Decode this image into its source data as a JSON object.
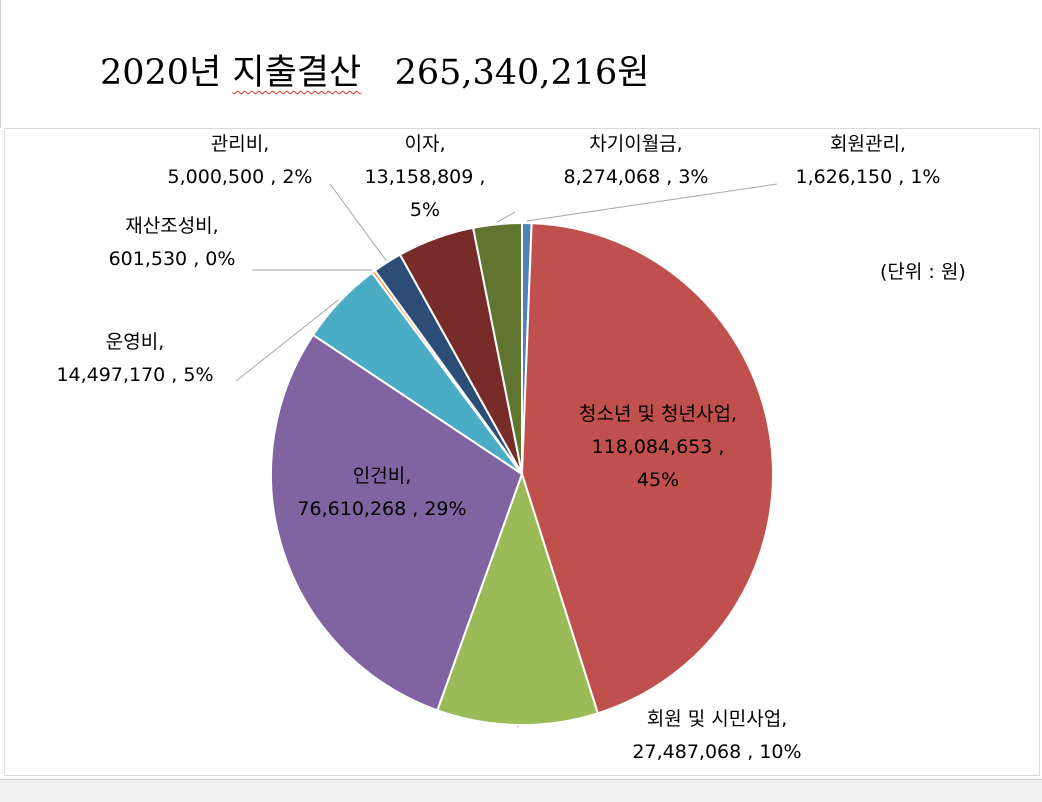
{
  "document": {
    "title_year": "2020년 ",
    "title_word": "지출결산",
    "title_amount": "   265,340,216원"
  },
  "chart_data": {
    "type": "pie",
    "unit_note": "(단위 : 원)",
    "slices": [
      {
        "name": "회원관리",
        "value": 1626150,
        "value_label": "1,626,150",
        "percent_label": "1%",
        "color": "#4f81bd"
      },
      {
        "name": "청소년 및 청년사업",
        "value": 118084653,
        "value_label": "118,084,653",
        "percent_label": "45%",
        "color": "#c0504d"
      },
      {
        "name": "회원 및 시민사업",
        "value": 27487068,
        "value_label": "27,487,068",
        "percent_label": "10%",
        "color": "#9bbb59"
      },
      {
        "name": "인건비",
        "value": 76610268,
        "value_label": "76,610,268",
        "percent_label": "29%",
        "color": "#8064a2"
      },
      {
        "name": "운영비",
        "value": 14497170,
        "value_label": "14,497,170",
        "percent_label": "5%",
        "color": "#4bacc6"
      },
      {
        "name": "재산조성비",
        "value": 601530,
        "value_label": "601,530",
        "percent_label": "0%",
        "color": "#f79646"
      },
      {
        "name": "관리비",
        "value": 5000500,
        "value_label": "5,000,500",
        "percent_label": "2%",
        "color": "#2c4d75"
      },
      {
        "name": "이자",
        "value": 13158809,
        "value_label": "13,158,809",
        "percent_label": "5%",
        "color": "#772c2a"
      },
      {
        "name": "차기이월금",
        "value": 8274068,
        "value_label": "8,274,068",
        "percent_label": "3%",
        "color": "#5f7530"
      }
    ]
  }
}
